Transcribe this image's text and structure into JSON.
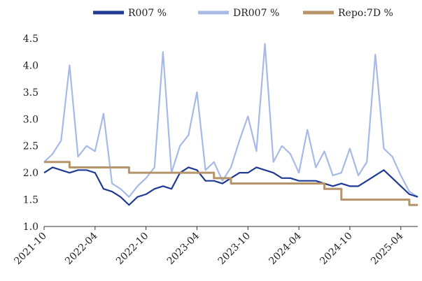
{
  "chart_data": {
    "type": "line",
    "title": "",
    "xlabel": "",
    "ylabel": "",
    "ylim": [
      1.0,
      4.5
    ],
    "y_ticks": [
      "1.0",
      "1.5",
      "2.0",
      "2.5",
      "3.0",
      "3.5",
      "4.0",
      "4.5"
    ],
    "x_ticks": [
      "2021-10",
      "2022-04",
      "2022-10",
      "2023-04",
      "2023-10",
      "2024-04",
      "2024-10",
      "2025-04"
    ],
    "x_range": [
      "2021-10",
      "2025-06"
    ],
    "legend_position": "top",
    "grid": false,
    "series": [
      {
        "name": "R007 %",
        "color": "#1f3a93",
        "points": [
          [
            "2021-10",
            2.0
          ],
          [
            "2021-11",
            2.1
          ],
          [
            "2021-12",
            2.05
          ],
          [
            "2022-01",
            2.0
          ],
          [
            "2022-02",
            2.05
          ],
          [
            "2022-03",
            2.05
          ],
          [
            "2022-04",
            2.0
          ],
          [
            "2022-05",
            1.7
          ],
          [
            "2022-06",
            1.65
          ],
          [
            "2022-07",
            1.55
          ],
          [
            "2022-08",
            1.4
          ],
          [
            "2022-09",
            1.55
          ],
          [
            "2022-10",
            1.6
          ],
          [
            "2022-11",
            1.7
          ],
          [
            "2022-12",
            1.75
          ],
          [
            "2023-01",
            1.7
          ],
          [
            "2023-02",
            2.0
          ],
          [
            "2023-03",
            2.1
          ],
          [
            "2023-04",
            2.05
          ],
          [
            "2023-05",
            1.85
          ],
          [
            "2023-06",
            1.85
          ],
          [
            "2023-07",
            1.8
          ],
          [
            "2023-08",
            1.9
          ],
          [
            "2023-09",
            2.0
          ],
          [
            "2023-10",
            2.0
          ],
          [
            "2023-11",
            2.1
          ],
          [
            "2023-12",
            2.05
          ],
          [
            "2024-01",
            2.0
          ],
          [
            "2024-02",
            1.9
          ],
          [
            "2024-03",
            1.9
          ],
          [
            "2024-04",
            1.85
          ],
          [
            "2024-05",
            1.85
          ],
          [
            "2024-06",
            1.85
          ],
          [
            "2024-07",
            1.8
          ],
          [
            "2024-08",
            1.75
          ],
          [
            "2024-09",
            1.8
          ],
          [
            "2024-10",
            1.75
          ],
          [
            "2024-11",
            1.75
          ],
          [
            "2024-12",
            1.85
          ],
          [
            "2025-01",
            1.95
          ],
          [
            "2025-02",
            2.05
          ],
          [
            "2025-03",
            1.9
          ],
          [
            "2025-04",
            1.75
          ],
          [
            "2025-05",
            1.6
          ],
          [
            "2025-06",
            1.55
          ]
        ]
      },
      {
        "name": "DR007 %",
        "color": "#a7b9e6",
        "points": [
          [
            "2021-10",
            2.2
          ],
          [
            "2021-11",
            2.35
          ],
          [
            "2021-12",
            2.6
          ],
          [
            "2022-01",
            4.0
          ],
          [
            "2022-02",
            2.3
          ],
          [
            "2022-03",
            2.5
          ],
          [
            "2022-04",
            2.4
          ],
          [
            "2022-05",
            3.1
          ],
          [
            "2022-06",
            1.8
          ],
          [
            "2022-07",
            1.7
          ],
          [
            "2022-08",
            1.55
          ],
          [
            "2022-09",
            1.75
          ],
          [
            "2022-10",
            1.9
          ],
          [
            "2022-11",
            2.1
          ],
          [
            "2022-12",
            4.25
          ],
          [
            "2023-01",
            2.0
          ],
          [
            "2023-02",
            2.5
          ],
          [
            "2023-03",
            2.7
          ],
          [
            "2023-04",
            3.5
          ],
          [
            "2023-05",
            2.05
          ],
          [
            "2023-06",
            2.2
          ],
          [
            "2023-07",
            1.85
          ],
          [
            "2023-08",
            2.1
          ],
          [
            "2023-09",
            2.6
          ],
          [
            "2023-10",
            3.05
          ],
          [
            "2023-11",
            2.4
          ],
          [
            "2023-12",
            4.4
          ],
          [
            "2024-01",
            2.2
          ],
          [
            "2024-02",
            2.5
          ],
          [
            "2024-03",
            2.35
          ],
          [
            "2024-04",
            2.0
          ],
          [
            "2024-05",
            2.8
          ],
          [
            "2024-06",
            2.1
          ],
          [
            "2024-07",
            2.4
          ],
          [
            "2024-08",
            1.95
          ],
          [
            "2024-09",
            2.0
          ],
          [
            "2024-10",
            2.45
          ],
          [
            "2024-11",
            1.95
          ],
          [
            "2024-12",
            2.2
          ],
          [
            "2025-01",
            4.2
          ],
          [
            "2025-02",
            2.45
          ],
          [
            "2025-03",
            2.3
          ],
          [
            "2025-04",
            1.95
          ],
          [
            "2025-05",
            1.65
          ],
          [
            "2025-06",
            1.55
          ]
        ]
      },
      {
        "name": "Repo:7D %",
        "color": "#b5946a",
        "steps": [
          [
            "2021-10",
            2.2
          ],
          [
            "2022-01",
            2.1
          ],
          [
            "2022-08",
            2.0
          ],
          [
            "2023-06",
            1.9
          ],
          [
            "2023-08",
            1.8
          ],
          [
            "2024-07",
            1.7
          ],
          [
            "2024-09",
            1.5
          ],
          [
            "2025-05",
            1.4
          ],
          [
            "2025-06",
            1.4
          ]
        ]
      }
    ]
  }
}
